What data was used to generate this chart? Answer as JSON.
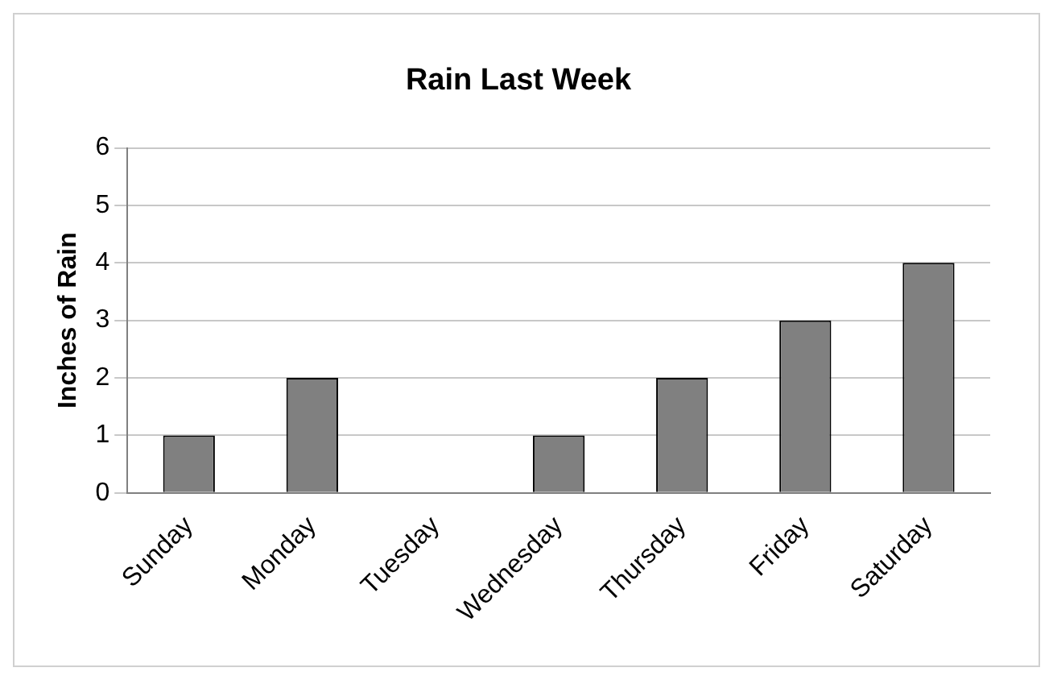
{
  "chart_data": {
    "type": "bar",
    "title": "Rain Last Week",
    "ylabel": "Inches of Rain",
    "categories": [
      "Sunday",
      "Monday",
      "Tuesday",
      "Wednesday",
      "Thursday",
      "Friday",
      "Saturday"
    ],
    "values": [
      1,
      2,
      0,
      1,
      2,
      3,
      4
    ],
    "color": "#808080",
    "ylim": [
      0,
      6
    ],
    "yticks": [
      0,
      1,
      2,
      3,
      4,
      5,
      6
    ],
    "grid": "y"
  }
}
